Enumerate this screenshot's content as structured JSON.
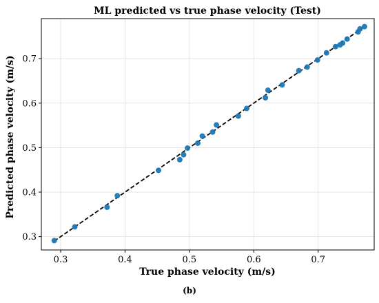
{
  "chart_data": {
    "type": "scatter",
    "title": "ML predicted vs true phase velocity (Test)",
    "xlabel": "True phase velocity (m/s)",
    "ylabel": "Predicted phase velocity (m/s)",
    "xlim": [
      0.27,
      0.787
    ],
    "ylim": [
      0.27,
      0.79
    ],
    "xticks": [
      "0.3",
      "0.4",
      "0.5",
      "0.6",
      "0.7"
    ],
    "yticks": [
      "0.3",
      "0.4",
      "0.5",
      "0.6",
      "0.7"
    ],
    "grid": true,
    "reference_line": {
      "style": "dashed",
      "color": "#000000",
      "x": [
        0.29,
        0.772
      ],
      "y": [
        0.29,
        0.772
      ]
    },
    "series": [
      {
        "color": "#1f77b4",
        "points": [
          [
            0.29,
            0.291
          ],
          [
            0.322,
            0.322
          ],
          [
            0.372,
            0.366
          ],
          [
            0.388,
            0.392
          ],
          [
            0.452,
            0.449
          ],
          [
            0.485,
            0.473
          ],
          [
            0.491,
            0.484
          ],
          [
            0.497,
            0.499
          ],
          [
            0.513,
            0.51
          ],
          [
            0.52,
            0.526
          ],
          [
            0.536,
            0.535
          ],
          [
            0.542,
            0.551
          ],
          [
            0.576,
            0.571
          ],
          [
            0.589,
            0.588
          ],
          [
            0.618,
            0.612
          ],
          [
            0.622,
            0.629
          ],
          [
            0.644,
            0.641
          ],
          [
            0.67,
            0.673
          ],
          [
            0.683,
            0.681
          ],
          [
            0.699,
            0.697
          ],
          [
            0.713,
            0.713
          ],
          [
            0.727,
            0.727
          ],
          [
            0.734,
            0.731
          ],
          [
            0.738,
            0.735
          ],
          [
            0.745,
            0.744
          ],
          [
            0.762,
            0.76
          ],
          [
            0.765,
            0.767
          ],
          [
            0.772,
            0.772
          ]
        ]
      }
    ]
  },
  "caption": {
    "label": "(b)"
  }
}
